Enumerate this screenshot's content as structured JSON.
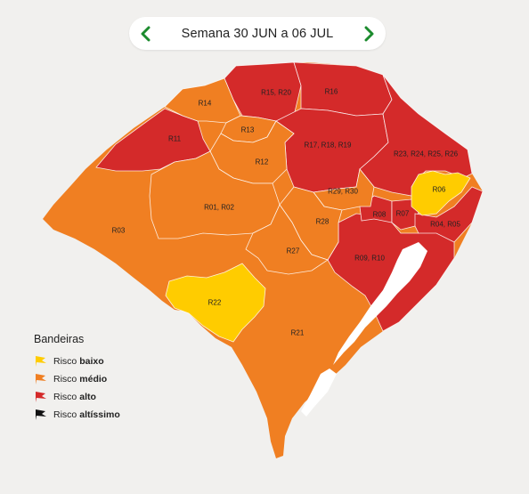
{
  "header": {
    "week_label": "Semana 30 JUN a 06 JUL",
    "prev_icon": "chevron-left-icon",
    "next_icon": "chevron-right-icon",
    "arrow_color": "#1c8b2e"
  },
  "colors": {
    "baixo": "#ffcc00",
    "medio": "#f07f22",
    "alto": "#d42a2a",
    "altissimo": "#111111",
    "lagoon": "#ffffff",
    "region_border": "#ffffff"
  },
  "regions": [
    {
      "id": "R14",
      "label": "R14",
      "risk": "medio"
    },
    {
      "id": "R15_R20",
      "label": "R15, R20",
      "risk": "alto"
    },
    {
      "id": "R16",
      "label": "R16",
      "risk": "alto"
    },
    {
      "id": "R11",
      "label": "R11",
      "risk": "alto"
    },
    {
      "id": "R13",
      "label": "R13",
      "risk": "medio"
    },
    {
      "id": "R12",
      "label": "R12",
      "risk": "medio"
    },
    {
      "id": "R17_R18_R19",
      "label": "R17, R18, R19",
      "risk": "alto"
    },
    {
      "id": "R23_R26",
      "label": "R23, R24, R25, R26",
      "risk": "alto"
    },
    {
      "id": "R06",
      "label": "R06",
      "risk": "baixo"
    },
    {
      "id": "R29_R30",
      "label": "R29, R30",
      "risk": "medio"
    },
    {
      "id": "R01_R02",
      "label": "R01, R02",
      "risk": "medio"
    },
    {
      "id": "R08",
      "label": "R08",
      "risk": "alto"
    },
    {
      "id": "R07",
      "label": "R07",
      "risk": "alto"
    },
    {
      "id": "R04_R05",
      "label": "R04, R05",
      "risk": "alto"
    },
    {
      "id": "R03",
      "label": "R03",
      "risk": "medio"
    },
    {
      "id": "R28",
      "label": "R28",
      "risk": "medio"
    },
    {
      "id": "R27",
      "label": "R27",
      "risk": "medio"
    },
    {
      "id": "R09_R10",
      "label": "R09, R10",
      "risk": "alto"
    },
    {
      "id": "R22",
      "label": "R22",
      "risk": "baixo"
    },
    {
      "id": "R21",
      "label": "R21",
      "risk": "medio"
    }
  ],
  "legend": {
    "title": "Bandeiras",
    "items": [
      {
        "prefix": "Risco",
        "level": "baixo",
        "color": "#ffcc00",
        "icon": "flag-icon"
      },
      {
        "prefix": "Risco",
        "level": "médio",
        "color": "#f07f22",
        "icon": "flag-icon"
      },
      {
        "prefix": "Risco",
        "level": "alto",
        "color": "#d42a2a",
        "icon": "flag-icon"
      },
      {
        "prefix": "Risco",
        "level": "altíssimo",
        "color": "#111111",
        "icon": "flag-icon"
      }
    ]
  }
}
